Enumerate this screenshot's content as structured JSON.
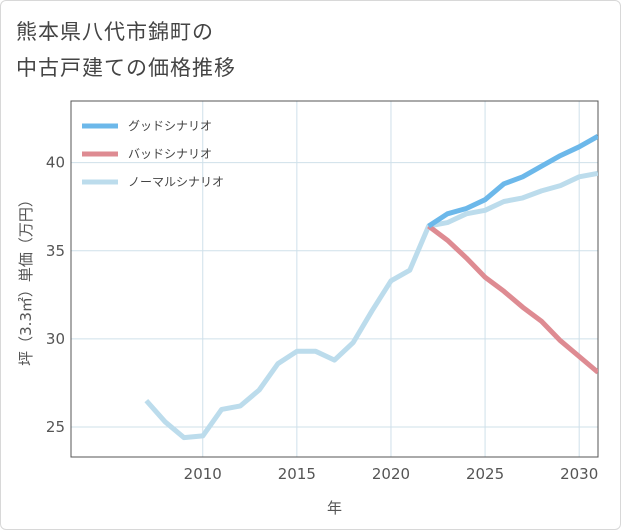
{
  "title_lines": [
    "熊本県八代市錦町の",
    "中古戸建ての価格推移"
  ],
  "chart_data": {
    "type": "line",
    "title": "熊本県八代市錦町の中古戸建ての価格推移",
    "xlabel": "年",
    "ylabel": "坪（3.3㎡）単価（万円）",
    "xlim": [
      2003.0,
      2031.0
    ],
    "ylim": [
      23.3,
      43.5
    ],
    "xticks": [
      2010,
      2015,
      2020,
      2025,
      2030
    ],
    "yticks": [
      25,
      30,
      35,
      40
    ],
    "grid": true,
    "legend_position": "top-left",
    "series": [
      {
        "name": "グッドシナリオ",
        "color": "#6cb8ea",
        "x": [
          2022,
          2023,
          2024,
          2025,
          2026,
          2027,
          2028,
          2029,
          2030,
          2031
        ],
        "y": [
          36.4,
          37.1,
          37.4,
          37.9,
          38.8,
          39.2,
          39.8,
          40.4,
          40.9,
          41.5
        ]
      },
      {
        "name": "バッドシナリオ",
        "color": "#de8b92",
        "x": [
          2022,
          2023,
          2024,
          2025,
          2026,
          2027,
          2028,
          2029,
          2030,
          2031
        ],
        "y": [
          36.4,
          35.6,
          34.6,
          33.5,
          32.7,
          31.8,
          31.0,
          29.9,
          29.0,
          28.1
        ]
      },
      {
        "name": "ノーマルシナリオ",
        "color": "#bcdcec",
        "x": [
          2007,
          2008,
          2009,
          2010,
          2011,
          2012,
          2013,
          2014,
          2015,
          2016,
          2017,
          2018,
          2019,
          2020,
          2021,
          2022,
          2023,
          2024,
          2025,
          2026,
          2027,
          2028,
          2029,
          2030,
          2031
        ],
        "y": [
          26.5,
          25.3,
          24.4,
          24.5,
          26.0,
          26.2,
          27.1,
          28.6,
          29.3,
          29.3,
          28.8,
          29.8,
          31.6,
          33.3,
          33.9,
          36.4,
          36.6,
          37.1,
          37.3,
          37.8,
          38.0,
          38.4,
          38.7,
          39.2,
          39.4
        ]
      }
    ]
  }
}
